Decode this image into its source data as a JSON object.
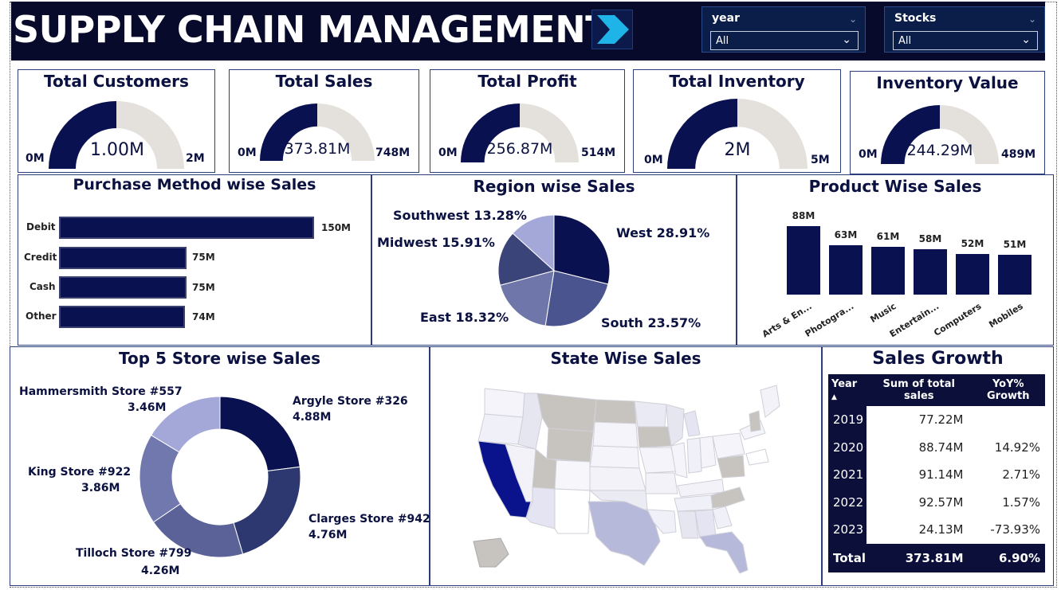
{
  "header": {
    "title": "SUPPLY CHAIN MANAGEMENT",
    "slicers": [
      {
        "label": "year",
        "value": "All"
      },
      {
        "label": "Stocks",
        "value": "All"
      }
    ]
  },
  "kpis": [
    {
      "title": "Total Customers",
      "min": "0M",
      "max": "2M",
      "value": "1.00M",
      "fraction": 0.5
    },
    {
      "title": "Total Sales",
      "min": "0M",
      "max": "748M",
      "value": "373.81M",
      "fraction": 0.5
    },
    {
      "title": "Total Profit",
      "min": "0M",
      "max": "514M",
      "value": "256.87M",
      "fraction": 0.5
    },
    {
      "title": "Total Inventory",
      "min": "0M",
      "max": "5M",
      "value": "2M",
      "fraction": 0.5
    },
    {
      "title": "Inventory Value",
      "min": "0M",
      "max": "489M",
      "value": "244.29M",
      "fraction": 0.5
    }
  ],
  "purchase_method": {
    "title": "Purchase Method wise Sales",
    "items": [
      {
        "label": "Debit",
        "value_label": "150M",
        "value": 150
      },
      {
        "label": "Credit",
        "value_label": "75M",
        "value": 75
      },
      {
        "label": "Cash",
        "value_label": "75M",
        "value": 75
      },
      {
        "label": "Other",
        "value_label": "74M",
        "value": 74
      }
    ]
  },
  "region": {
    "title": "Region wise Sales",
    "slices": [
      {
        "label": "West 28.91%",
        "pct": 28.91,
        "color": "#0a1150"
      },
      {
        "label": "South 23.57%",
        "pct": 23.57,
        "color": "#4a5590"
      },
      {
        "label": "East 18.32%",
        "pct": 18.32,
        "color": "#6e76aa"
      },
      {
        "label": "Midwest 15.91%",
        "pct": 15.91,
        "color": "#3a4478"
      },
      {
        "label": "Southwest 13.28%",
        "pct": 13.28,
        "color": "#a3a8d8"
      }
    ]
  },
  "product": {
    "title": "Product Wise Sales",
    "items": [
      {
        "label": "Arts & En...",
        "value_label": "88M",
        "value": 88
      },
      {
        "label": "Photogra...",
        "value_label": "63M",
        "value": 63
      },
      {
        "label": "Music",
        "value_label": "61M",
        "value": 61
      },
      {
        "label": "Entertain...",
        "value_label": "58M",
        "value": 58
      },
      {
        "label": "Computers",
        "value_label": "52M",
        "value": 52
      },
      {
        "label": "Mobiles",
        "value_label": "51M",
        "value": 51
      }
    ]
  },
  "stores": {
    "title": "Top 5 Store wise Sales",
    "slices": [
      {
        "name": "Argyle Store #326",
        "value_label": "4.88M",
        "value": 4.88,
        "color": "#0a1150"
      },
      {
        "name": "Clarges Store #942",
        "value_label": "4.76M",
        "value": 4.76,
        "color": "#2e3870"
      },
      {
        "name": "Tilloch Store #799",
        "value_label": "4.26M",
        "value": 4.26,
        "color": "#5a6298"
      },
      {
        "name": "King Store #922",
        "value_label": "3.86M",
        "value": 3.86,
        "color": "#7078ae"
      },
      {
        "name": "Hammersmith Store #557",
        "value_label": "3.46M",
        "value": 3.46,
        "color": "#a3a8d8"
      }
    ]
  },
  "state": {
    "title": "State Wise Sales"
  },
  "growth": {
    "title": "Sales Growth",
    "headers": [
      "Year",
      "Sum of total sales",
      "YoY% Growth"
    ],
    "rows": [
      {
        "year": "2019",
        "sales": "77.22M",
        "yoy": ""
      },
      {
        "year": "2020",
        "sales": "88.74M",
        "yoy": "14.92%"
      },
      {
        "year": "2021",
        "sales": "91.14M",
        "yoy": "2.71%"
      },
      {
        "year": "2022",
        "sales": "92.57M",
        "yoy": "1.57%"
      },
      {
        "year": "2023",
        "sales": "24.13M",
        "yoy": "-73.93%"
      }
    ],
    "total": {
      "label": "Total",
      "sales": "373.81M",
      "yoy": "6.90%"
    }
  },
  "colors": {
    "navy": "#0a1150",
    "header_bg": "#070a2a",
    "gauge_track": "#e4e0db",
    "accent": "#1fb4e8"
  }
}
